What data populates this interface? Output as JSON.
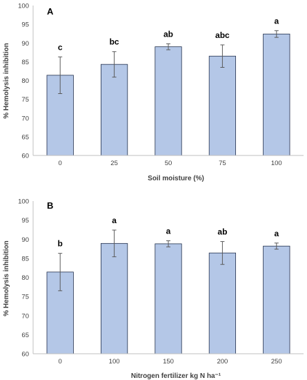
{
  "colors": {
    "bar_fill": "#b4c7e7",
    "bar_stroke": "#1f2d4a",
    "grid": "#d9d9d9",
    "axis": "#bfbfbf",
    "error": "#595959"
  },
  "chart_data": [
    {
      "type": "bar",
      "panel_label": "A",
      "categories": [
        "0",
        "25",
        "50",
        "75",
        "100"
      ],
      "values": [
        81.4,
        84.3,
        89.0,
        86.5,
        92.4
      ],
      "errors": [
        4.9,
        3.4,
        0.8,
        3.0,
        0.9
      ],
      "significance": [
        "c",
        "bc",
        "ab",
        "abc",
        "a"
      ],
      "xlabel": "Soil moisture (%)",
      "ylabel": "% Hemolysis inhibition",
      "ylim": [
        60,
        100
      ],
      "yticks": [
        "60",
        "65",
        "70",
        "75",
        "80",
        "85",
        "90",
        "95",
        "100"
      ],
      "grid": false
    },
    {
      "type": "bar",
      "panel_label": "B",
      "categories": [
        "0",
        "100",
        "150",
        "200",
        "250"
      ],
      "values": [
        81.4,
        88.9,
        88.8,
        86.4,
        88.2
      ],
      "errors": [
        4.9,
        3.5,
        0.8,
        3.0,
        0.8
      ],
      "significance": [
        "b",
        "a",
        "a",
        "ab",
        "a"
      ],
      "xlabel": "Nitrogen fertilizer kg N ha⁻¹",
      "ylabel": "% Hemolysis inhibition",
      "ylim": [
        60,
        100
      ],
      "yticks": [
        "60",
        "65",
        "70",
        "75",
        "80",
        "85",
        "90",
        "95",
        "100"
      ],
      "grid": false
    }
  ]
}
